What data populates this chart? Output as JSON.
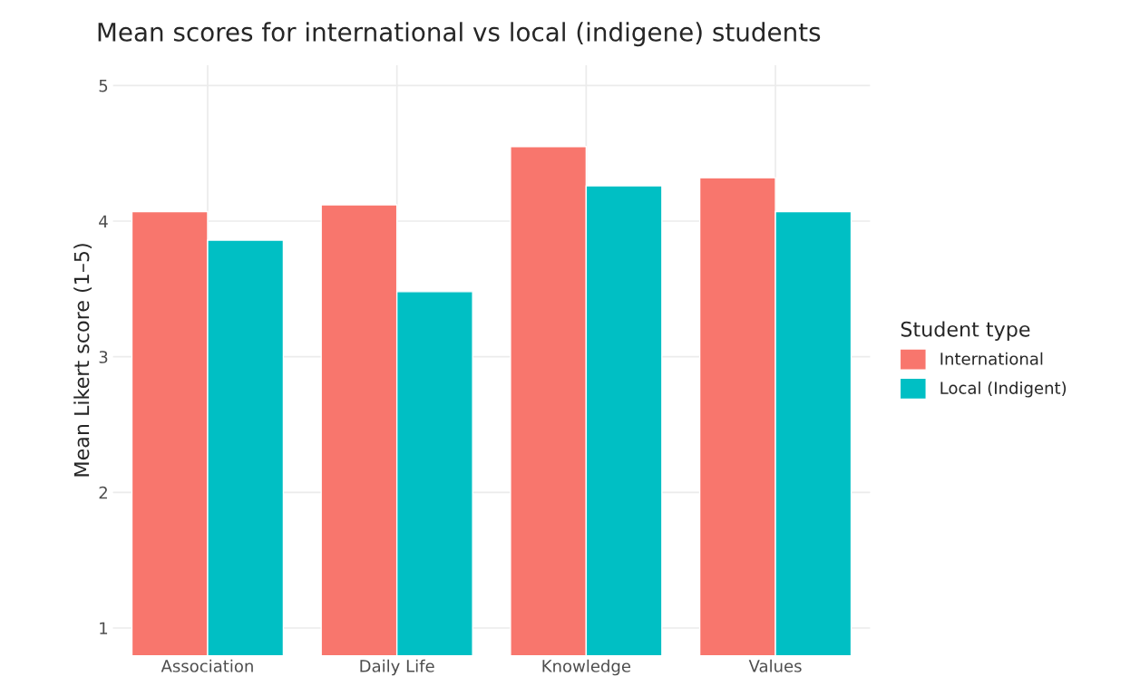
{
  "chart_data": {
    "type": "bar",
    "title": "Mean scores for international vs local (indigene) students",
    "ylabel": "Mean Likert score (1–5)",
    "legend_title": "Student type",
    "categories": [
      "Association",
      "Daily Life",
      "Knowledge",
      "Values"
    ],
    "series": [
      {
        "name": "International",
        "color": "#f8766d",
        "values": [
          4.07,
          4.12,
          4.55,
          4.32
        ]
      },
      {
        "name": "Local (Indigent)",
        "color": "#00bfc4",
        "values": [
          3.86,
          3.48,
          4.26,
          4.07
        ]
      }
    ],
    "ylim": [
      0.8,
      5.15
    ],
    "yticks": [
      1,
      2,
      3,
      4,
      5
    ],
    "grid": true,
    "legend": "right"
  }
}
